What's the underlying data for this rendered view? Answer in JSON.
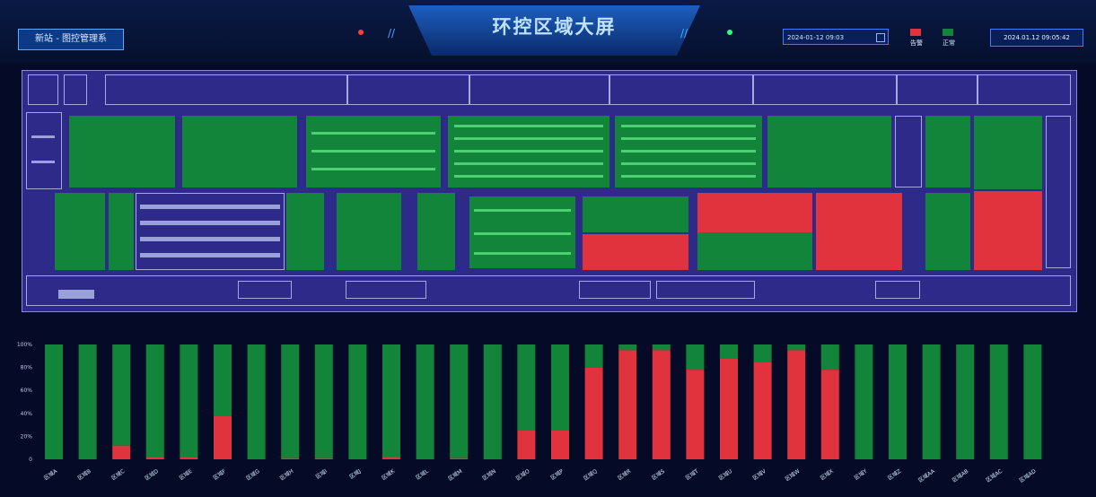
{
  "header": {
    "title": "环控区域大屏",
    "back_button": "新站 - 图控管理系",
    "datetime_input": "2024-01-12 09:03",
    "clock": "2024.01.12 09:05:42",
    "legend": [
      {
        "label": "告警",
        "color": "#e1333d"
      },
      {
        "label": "正常",
        "color": "#13853a"
      }
    ]
  },
  "colors": {
    "alarm": "#e1333d",
    "normal": "#13853a",
    "map_bg": "#2e2a8a",
    "page_bg": "#050b26"
  },
  "chart_data": {
    "type": "bar",
    "stacked": true,
    "y_ticks": [
      "0",
      "20%",
      "40%",
      "60%",
      "80%",
      "100%"
    ],
    "ylim": [
      0,
      100
    ],
    "grid": false,
    "series": [
      {
        "name": "正常",
        "color": "#13853a",
        "values": [
          100,
          100,
          88,
          98,
          98,
          62,
          100,
          99,
          99,
          100,
          98,
          100,
          99,
          100,
          75,
          75,
          20,
          5,
          5,
          22,
          12,
          15,
          5,
          22,
          100,
          100,
          100,
          100,
          100,
          100
        ]
      },
      {
        "name": "告警",
        "color": "#e1333d",
        "values": [
          0,
          0,
          12,
          2,
          2,
          38,
          0,
          1,
          1,
          0,
          2,
          0,
          1,
          0,
          25,
          25,
          80,
          95,
          95,
          78,
          88,
          85,
          95,
          78,
          0,
          0,
          0,
          0,
          0,
          0
        ]
      }
    ],
    "categories": [
      "区域A",
      "区域B",
      "区域C",
      "区域D",
      "区域E",
      "区域F",
      "区域G",
      "区域H",
      "区域I",
      "区域J",
      "区域K",
      "区域L",
      "区域M",
      "区域N",
      "区域O",
      "区域P",
      "区域Q",
      "区域R",
      "区域S",
      "区域T",
      "区域U",
      "区域V",
      "区域W",
      "区域X",
      "区域Y",
      "区域Z",
      "区域AA",
      "区域AB",
      "区域AC",
      "区域AD"
    ]
  }
}
